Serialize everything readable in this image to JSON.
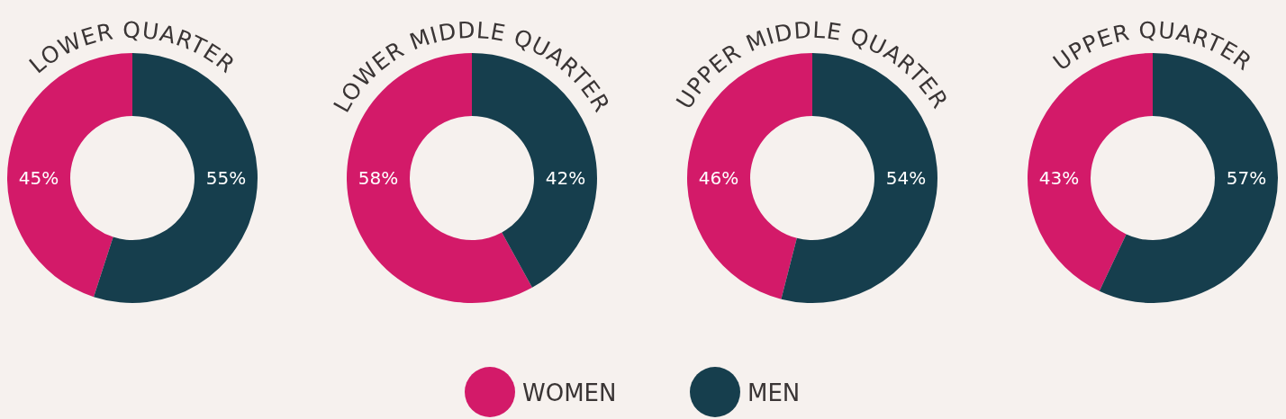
{
  "chart_data": [
    {
      "type": "donut",
      "title": "LOWER QUARTER",
      "categories": [
        "WOMEN",
        "MEN"
      ],
      "values": [
        45,
        55
      ],
      "colors": [
        "#d31a69",
        "#163e4d"
      ],
      "value_labels": [
        "45%",
        "55%"
      ],
      "legend": "bottom"
    },
    {
      "type": "donut",
      "title": "LOWER MIDDLE QUARTER",
      "categories": [
        null,
        null
      ],
      "values": [
        58,
        42
      ],
      "colors": [
        "#d31a69",
        "#163e4d"
      ],
      "value_labels": [
        "58%",
        "42%"
      ]
    },
    {
      "type": "donut",
      "title": "UPPER MIDDLE QUARTER",
      "categories": [
        null,
        null
      ],
      "values": [
        46,
        54
      ],
      "colors": [
        "#d31a69",
        "#163e4d"
      ],
      "value_labels": [
        "46%",
        "54%"
      ]
    },
    {
      "type": "donut",
      "title": "UPPER QUARTER",
      "categories": [
        null,
        null
      ],
      "values": [
        43,
        57
      ],
      "colors": [
        "#d31a69",
        "#163e4d"
      ],
      "value_labels": [
        "43%",
        "57%"
      ]
    }
  ]
}
